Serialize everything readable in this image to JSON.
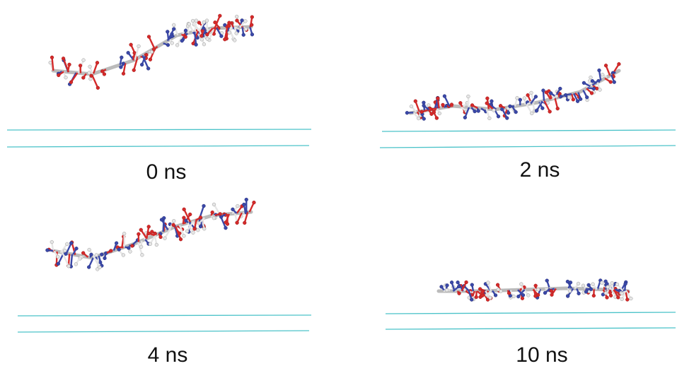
{
  "panels": [
    {
      "label": "0 ns"
    },
    {
      "label": "2 ns"
    },
    {
      "label": "4 ns"
    },
    {
      "label": "10 ns"
    }
  ]
}
